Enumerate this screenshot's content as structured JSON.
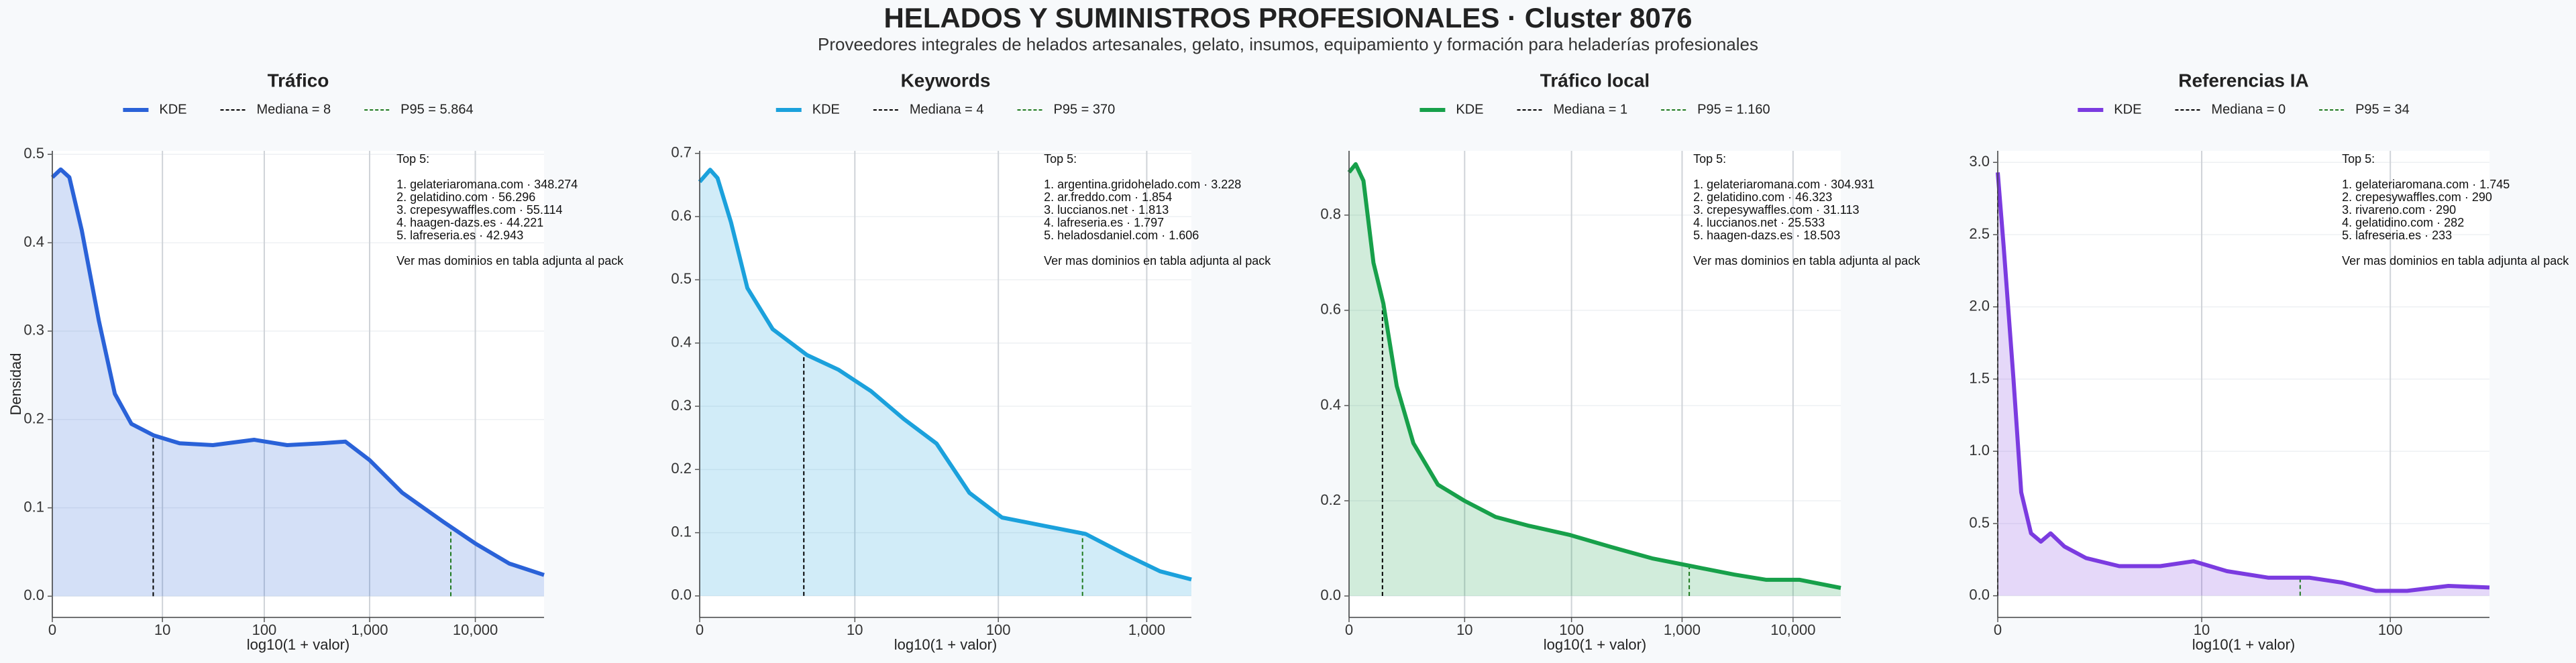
{
  "header": {
    "title": "HELADOS Y SUMINISTROS PROFESIONALES · Cluster 8076",
    "subtitle": "Proveedores integrales de helados artesanales, gelato, insumos, equipamiento y formación para heladerías profesionales"
  },
  "chart_data": [
    {
      "type": "line",
      "title": "Tráfico",
      "x_label": "log10(1 + valor)",
      "y_label": "Densidad",
      "xscale": "log1p",
      "grid": true,
      "fill": true,
      "x": [
        0,
        0.2,
        0.45,
        0.9,
        1.75,
        2.9,
        4.6,
        8.1,
        15,
        32,
        80,
        165,
        350,
        590,
        1000,
        2040,
        5000,
        10200,
        20900,
        44670
      ],
      "series": [
        {
          "name": "KDE",
          "color": "#2a62d8",
          "values": [
            0.474,
            0.483,
            0.474,
            0.414,
            0.312,
            0.229,
            0.195,
            0.182,
            0.173,
            0.171,
            0.177,
            0.171,
            0.173,
            0.175,
            0.154,
            0.117,
            0.084,
            0.059,
            0.037,
            0.024
          ]
        }
      ],
      "median": {
        "label": "Mediana = 8",
        "value": 8,
        "color": "#000000"
      },
      "p95": {
        "label": "P95 = 5.864",
        "value": 5864,
        "color": "#1f7a1f"
      },
      "xlim": [
        0,
        44670
      ],
      "ylim": [
        -0.024,
        0.504
      ],
      "xticks": [
        0,
        {
          "value": 10,
          "label": "10"
        },
        {
          "value": 100,
          "label": "100"
        },
        {
          "value": 1000,
          "label": "1,000"
        },
        {
          "value": 10000,
          "label": "10,000"
        }
      ],
      "yticks": [
        {
          "value": 0,
          "label": "0.0"
        },
        {
          "value": 0.1,
          "label": "0.1"
        },
        {
          "value": 0.2,
          "label": "0.2"
        },
        {
          "value": 0.3,
          "label": "0.3"
        },
        {
          "value": 0.4,
          "label": "0.4"
        },
        {
          "value": 0.5,
          "label": "0.5"
        }
      ],
      "annotation": {
        "title": "Top 5:",
        "items": [
          "1. gelateriaromana.com · 348.274",
          "2. gelatidino.com · 56.296",
          "3. crepesywaffles.com · 55.114",
          "4. haagen-dazs.es · 44.221",
          "5. lafreseria.es · 42.943"
        ],
        "note": "Ver mas dominios en tabla adjunta al pack"
      }
    },
    {
      "type": "line",
      "title": "Keywords",
      "x_label": "log10(1 + valor)",
      "xscale": "log1p",
      "grid": true,
      "fill": true,
      "x": [
        0,
        0.175,
        0.318,
        0.622,
        1.089,
        2.09,
        4.25,
        7.51,
        13.1,
        22.4,
        37.9,
        63.6,
        106,
        203,
        388,
        723,
        1229,
        1994
      ],
      "series": [
        {
          "name": "KDE",
          "color": "#1ba1dc",
          "values": [
            0.655,
            0.674,
            0.661,
            0.591,
            0.487,
            0.422,
            0.381,
            0.358,
            0.324,
            0.28,
            0.241,
            0.163,
            0.124,
            0.111,
            0.098,
            0.065,
            0.039,
            0.026
          ]
        }
      ],
      "median": {
        "label": "Mediana = 4",
        "value": 4,
        "color": "#000000"
      },
      "p95": {
        "label": "P95 = 370",
        "value": 370,
        "color": "#1f7a1f"
      },
      "xlim": [
        0,
        1995
      ],
      "ylim": [
        -0.034,
        0.704
      ],
      "xticks": [
        0,
        {
          "value": 10,
          "label": "10"
        },
        {
          "value": 100,
          "label": "100"
        },
        {
          "value": 1000,
          "label": "1,000"
        }
      ],
      "yticks": [
        {
          "value": 0,
          "label": "0.0"
        },
        {
          "value": 0.1,
          "label": "0.1"
        },
        {
          "value": 0.2,
          "label": "0.2"
        },
        {
          "value": 0.3,
          "label": "0.3"
        },
        {
          "value": 0.4,
          "label": "0.4"
        },
        {
          "value": 0.5,
          "label": "0.5"
        },
        {
          "value": 0.6,
          "label": "0.6"
        },
        {
          "value": 0.7,
          "label": "0.7"
        }
      ],
      "annotation": {
        "title": "Top 5:",
        "items": [
          "1. argentina.gridohelado.com · 3.228",
          "2. ar.freddo.com · 1.854",
          "3. luccianos.net · 1.813",
          "4. lafreseria.es · 1.797",
          "5. heladosdaniel.com · 1.606"
        ],
        "note": "Ver mas dominios en tabla adjunta al pack"
      }
    },
    {
      "type": "line",
      "title": "Tráfico local",
      "x_label": "log10(1 + valor)",
      "xscale": "log1p",
      "grid": true,
      "fill": true,
      "x": [
        0,
        0.148,
        0.349,
        0.66,
        1.04,
        1.69,
        2.8,
        5.31,
        9.96,
        19.9,
        39.7,
        97,
        228,
        536,
        1258,
        2950,
        5753,
        11480,
        26915
      ],
      "series": [
        {
          "name": "KDE",
          "color": "#17a04a",
          "values": [
            0.89,
            0.907,
            0.872,
            0.7,
            0.614,
            0.441,
            0.321,
            0.234,
            0.2,
            0.166,
            0.148,
            0.128,
            0.103,
            0.079,
            0.062,
            0.045,
            0.034,
            0.034,
            0.017
          ]
        }
      ],
      "median": {
        "label": "Mediana = 1",
        "value": 1,
        "color": "#000000"
      },
      "p95": {
        "label": "P95 = 1.160",
        "value": 1160,
        "color": "#1f7a1f"
      },
      "xlim": [
        0,
        26915
      ],
      "ylim": [
        -0.045,
        0.935
      ],
      "xticks": [
        0,
        {
          "value": 10,
          "label": "10"
        },
        {
          "value": 100,
          "label": "100"
        },
        {
          "value": 1000,
          "label": "1,000"
        },
        {
          "value": 10000,
          "label": "10,000"
        }
      ],
      "yticks": [
        {
          "value": 0,
          "label": "0.0"
        },
        {
          "value": 0.2,
          "label": "0.2"
        },
        {
          "value": 0.4,
          "label": "0.4"
        },
        {
          "value": 0.6,
          "label": "0.6"
        },
        {
          "value": 0.8,
          "label": "0.8"
        }
      ],
      "annotation": {
        "title": "Top 5:",
        "items": [
          "1. gelateriaromana.com · 304.931",
          "2. gelatidino.com · 46.323",
          "3. crepesywaffles.com · 31.113",
          "4. luccianos.net · 25.533",
          "5. haagen-dazs.es · 18.503"
        ],
        "note": "Ver mas dominios en tabla adjunta al pack"
      }
    },
    {
      "type": "line",
      "title": "Referencias IA",
      "x_label": "log10(1 + valor)",
      "xscale": "log1p",
      "grid": true,
      "fill": true,
      "x": [
        0,
        0.072,
        0.202,
        0.318,
        0.479,
        0.66,
        0.862,
        1.188,
        1.818,
        3.17,
        5.76,
        9,
        13.8,
        23,
        37.9,
        56.5,
        84.1,
        122,
        199,
        323
      ],
      "series": [
        {
          "name": "KDE",
          "color": "#7b3be0",
          "values": [
            2.93,
            2.42,
            1.51,
            0.716,
            0.432,
            0.375,
            0.432,
            0.341,
            0.261,
            0.205,
            0.205,
            0.239,
            0.17,
            0.125,
            0.125,
            0.091,
            0.034,
            0.034,
            0.068,
            0.057
          ]
        }
      ],
      "median": {
        "label": "Mediana = 0",
        "value": 0,
        "color": "#000000"
      },
      "p95": {
        "label": "P95 = 34",
        "value": 34,
        "color": "#1f7a1f"
      },
      "xlim": [
        0,
        323
      ],
      "ylim": [
        -0.15,
        3.08
      ],
      "xticks": [
        0,
        {
          "value": 10,
          "label": "10"
        },
        {
          "value": 100,
          "label": "100"
        }
      ],
      "yticks": [
        {
          "value": 0,
          "label": "0.0"
        },
        {
          "value": 0.5,
          "label": "0.5"
        },
        {
          "value": 1,
          "label": "1.0"
        },
        {
          "value": 1.5,
          "label": "1.5"
        },
        {
          "value": 2,
          "label": "2.0"
        },
        {
          "value": 2.5,
          "label": "2.5"
        },
        {
          "value": 3,
          "label": "3.0"
        }
      ],
      "annotation": {
        "title": "Top 5:",
        "items": [
          "1. gelateriaromana.com · 1.745",
          "2. crepesywaffles.com · 290",
          "3. rivareno.com · 290",
          "4. gelatidino.com · 282",
          "5. lafreseria.es · 233"
        ],
        "note": "Ver mas dominios en tabla adjunta al pack"
      }
    }
  ]
}
